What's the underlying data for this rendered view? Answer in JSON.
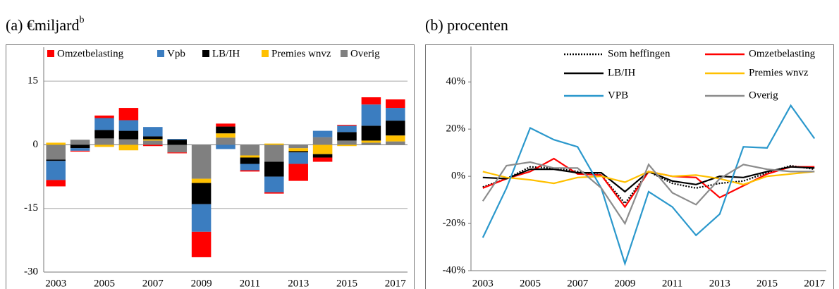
{
  "chart_data": [
    {
      "type": "stacked-bar",
      "title": "(a) €miljard",
      "title_sup": "b",
      "categories": [
        "2003",
        null,
        "2005",
        null,
        "2007",
        null,
        "2009",
        null,
        "2011",
        null,
        "2013",
        null,
        "2015",
        null,
        "2017"
      ],
      "series": [
        {
          "name": "Omzetbelasting",
          "color": "#ff0000",
          "values": [
            -1.5,
            -0.2,
            0.6,
            2.9,
            -0.3,
            -0.2,
            -6,
            0.7,
            -0.3,
            -0.3,
            -4,
            -1,
            0.2,
            1.7,
            2
          ]
        },
        {
          "name": "Vpb",
          "color": "#3b7dc0",
          "values": [
            -4.5,
            -0.6,
            2.8,
            2.5,
            2.2,
            0.2,
            -6.5,
            -1,
            -1.5,
            -3.7,
            -2.7,
            1.5,
            1.5,
            5,
            3
          ]
        },
        {
          "name": "LB/IH",
          "color": "#000000",
          "values": [
            -0.3,
            -0.8,
            2,
            2,
            0.7,
            1.2,
            -5,
            1.6,
            -1.5,
            -3.5,
            -0.3,
            -0.8,
            2,
            3.5,
            3.5
          ]
        },
        {
          "name": "Premies wnvz",
          "color": "#ffc000",
          "values": [
            0.5,
            0,
            -0.5,
            -1.3,
            0.3,
            0,
            -1,
            1,
            -0.5,
            0.3,
            -0.7,
            -2.2,
            -0.3,
            0.5,
            1.4
          ]
        },
        {
          "name": "Overig",
          "color": "#808080",
          "values": [
            -3.5,
            1.2,
            1.5,
            1.3,
            1,
            -1.8,
            -8,
            1.7,
            -2.5,
            -4,
            -0.8,
            1.8,
            1,
            0.5,
            0.8
          ]
        }
      ],
      "ylim": [
        -30,
        23
      ],
      "yticks": [
        -30,
        -15,
        0,
        15
      ],
      "grid": true
    },
    {
      "type": "line",
      "title": "(b) procenten",
      "categories": [
        "2003",
        null,
        "2005",
        null,
        "2007",
        null,
        "2009",
        null,
        "2011",
        null,
        "2013",
        null,
        "2015",
        null,
        "2017"
      ],
      "series": [
        {
          "name": "Som heffingen",
          "color": "#000000",
          "linestyle": "dotted",
          "values": [
            -4.5,
            -1,
            4,
            3.5,
            2,
            0.5,
            -11.5,
            2,
            -3,
            -5,
            -3,
            -2,
            1.5,
            4.5,
            3
          ]
        },
        {
          "name": "Omzetbelasting",
          "color": "#ff0000",
          "linestyle": "solid",
          "values": [
            -5,
            -1,
            2,
            7.5,
            1,
            0.5,
            -13,
            2,
            0,
            -0.5,
            -9,
            -4,
            1,
            4,
            4
          ]
        },
        {
          "name": "LB/IH",
          "color": "#000000",
          "linestyle": "solid",
          "values": [
            -0.5,
            -1,
            3,
            3,
            1.5,
            1.5,
            -6.5,
            2,
            -2,
            -3.5,
            0,
            -0.5,
            2,
            4,
            3.5
          ]
        },
        {
          "name": "Premies wnvz",
          "color": "#ffc000",
          "linestyle": "solid",
          "values": [
            2,
            -0.5,
            -1.5,
            -3,
            -0.5,
            0,
            -2.5,
            2,
            0,
            0.5,
            -1,
            -3.5,
            0,
            1,
            2
          ]
        },
        {
          "name": "VPB",
          "color": "#2b98cc",
          "linestyle": "solid",
          "values": [
            -26,
            -5,
            20.5,
            15.5,
            12.5,
            -5,
            -37,
            -6.5,
            -13,
            -25,
            -16,
            12.5,
            12,
            30,
            16
          ]
        },
        {
          "name": "Overig",
          "color": "#8c8c8c",
          "linestyle": "solid",
          "values": [
            -10.5,
            4.5,
            6,
            3.5,
            3.5,
            -5,
            -20,
            5,
            -7,
            -12,
            -1,
            5,
            3,
            2,
            2
          ]
        }
      ],
      "ylim": [
        -40,
        55
      ],
      "yticks": [
        {
          "value": -40,
          "label": "-40%"
        },
        {
          "value": -20,
          "label": "-20%"
        },
        {
          "value": 0,
          "label": "0%"
        },
        {
          "value": 20,
          "label": "20%"
        },
        {
          "value": 40,
          "label": "40%"
        }
      ],
      "grid": false
    }
  ]
}
